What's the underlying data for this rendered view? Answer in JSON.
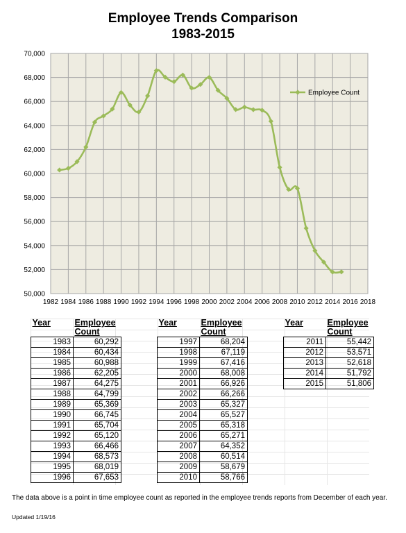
{
  "title_line1": "Employee Trends Comparison",
  "title_line2": "1983-2015",
  "chart_data": {
    "type": "line",
    "title": "Employee Trends Comparison 1983-2015",
    "xlabel": "",
    "ylabel": "",
    "xlim": [
      1982,
      2018
    ],
    "ylim": [
      50000,
      70000
    ],
    "x_ticks": [
      "1982",
      "1984",
      "1986",
      "1988",
      "1990",
      "1992",
      "1994",
      "1996",
      "1998",
      "2000",
      "2002",
      "2004",
      "2006",
      "2008",
      "2010",
      "2012",
      "2014",
      "2016",
      "2018"
    ],
    "y_ticks": [
      "50,000",
      "52,000",
      "54,000",
      "56,000",
      "58,000",
      "60,000",
      "62,000",
      "64,000",
      "66,000",
      "68,000",
      "70,000"
    ],
    "grid": true,
    "legend_position": "top-right",
    "series": [
      {
        "name": "Employee Count",
        "color": "#9bbb59",
        "x": [
          1983,
          1984,
          1985,
          1986,
          1987,
          1988,
          1989,
          1990,
          1991,
          1992,
          1993,
          1994,
          1995,
          1996,
          1997,
          1998,
          1999,
          2000,
          2001,
          2002,
          2003,
          2004,
          2005,
          2006,
          2007,
          2008,
          2009,
          2010,
          2011,
          2012,
          2013,
          2014,
          2015
        ],
        "y": [
          60292,
          60434,
          60988,
          62205,
          64275,
          64799,
          65369,
          66745,
          65704,
          65120,
          66466,
          68573,
          68019,
          67653,
          68204,
          67119,
          67416,
          68008,
          66926,
          66266,
          65327,
          65527,
          65318,
          65271,
          64352,
          60514,
          58679,
          58766,
          55442,
          53571,
          52618,
          51792,
          51806
        ]
      }
    ]
  },
  "table": {
    "header_year": "Year",
    "header_count_line1": "Employee",
    "header_count_line2": "Count",
    "columns": [
      [
        [
          "1983",
          "60,292"
        ],
        [
          "1984",
          "60,434"
        ],
        [
          "1985",
          "60,988"
        ],
        [
          "1986",
          "62,205"
        ],
        [
          "1987",
          "64,275"
        ],
        [
          "1988",
          "64,799"
        ],
        [
          "1989",
          "65,369"
        ],
        [
          "1990",
          "66,745"
        ],
        [
          "1991",
          "65,704"
        ],
        [
          "1992",
          "65,120"
        ],
        [
          "1993",
          "66,466"
        ],
        [
          "1994",
          "68,573"
        ],
        [
          "1995",
          "68,019"
        ],
        [
          "1996",
          "67,653"
        ]
      ],
      [
        [
          "1997",
          "68,204"
        ],
        [
          "1998",
          "67,119"
        ],
        [
          "1999",
          "67,416"
        ],
        [
          "2000",
          "68,008"
        ],
        [
          "2001",
          "66,926"
        ],
        [
          "2002",
          "66,266"
        ],
        [
          "2003",
          "65,327"
        ],
        [
          "2004",
          "65,527"
        ],
        [
          "2005",
          "65,318"
        ],
        [
          "2006",
          "65,271"
        ],
        [
          "2007",
          "64,352"
        ],
        [
          "2008",
          "60,514"
        ],
        [
          "2009",
          "58,679"
        ],
        [
          "2010",
          "58,766"
        ]
      ],
      [
        [
          "2011",
          "55,442"
        ],
        [
          "2012",
          "53,571"
        ],
        [
          "2013",
          "52,618"
        ],
        [
          "2014",
          "51,792"
        ],
        [
          "2015",
          "51,806"
        ]
      ]
    ]
  },
  "note": "The data above is a point in time employee count as reported in the employee trends reports from December of each year.",
  "updated": "Updated 1/19/16"
}
